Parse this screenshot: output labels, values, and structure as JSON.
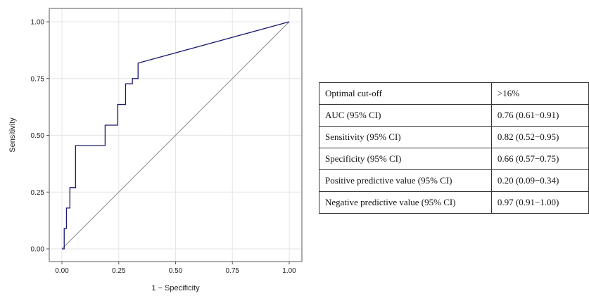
{
  "chart_data": {
    "type": "line",
    "xlabel": "1 − Specificity",
    "ylabel": "Sensitivity",
    "xlim": [
      0,
      1
    ],
    "ylim": [
      0,
      1
    ],
    "xticks": [
      "0.00",
      "0.25",
      "0.50",
      "0.75",
      "1.00"
    ],
    "yticks": [
      "0.00",
      "0.25",
      "0.50",
      "0.75",
      "1.00"
    ],
    "grid": true,
    "colors": {
      "roc": "#1a1a6e",
      "reference": "#8c8c8c",
      "grid": "#e6e6e6",
      "frame": "#7f7f7f"
    },
    "series": [
      {
        "role": "roc",
        "x": [
          0.0,
          0.01,
          0.01,
          0.02,
          0.02,
          0.035,
          0.035,
          0.06,
          0.06,
          0.19,
          0.19,
          0.245,
          0.245,
          0.28,
          0.28,
          0.31,
          0.31,
          0.335,
          0.335,
          1.0
        ],
        "y": [
          0.0,
          0.0,
          0.09,
          0.09,
          0.18,
          0.18,
          0.27,
          0.27,
          0.455,
          0.455,
          0.545,
          0.545,
          0.636,
          0.636,
          0.727,
          0.727,
          0.75,
          0.75,
          0.818,
          1.0
        ]
      },
      {
        "role": "reference",
        "x": [
          0,
          1
        ],
        "y": [
          0,
          1
        ]
      }
    ]
  },
  "table": {
    "rows": [
      {
        "label": "Optimal cut-off",
        "value": ">16%"
      },
      {
        "label": "AUC  (95% CI)",
        "value": "0.76 (0.61−0.91)"
      },
      {
        "label": "Sensitivity (95% CI)",
        "value": "0.82 (0.52−0.95)"
      },
      {
        "label": "Specificity (95% CI)",
        "value": "0.66 (0.57−0.75)"
      },
      {
        "label": "Positive predictive value (95% CI)",
        "value": "0.20 (0.09−0.34)"
      },
      {
        "label": "Negative predictive value (95% CI)",
        "value": "0.97 (0.91−1.00)"
      }
    ]
  }
}
